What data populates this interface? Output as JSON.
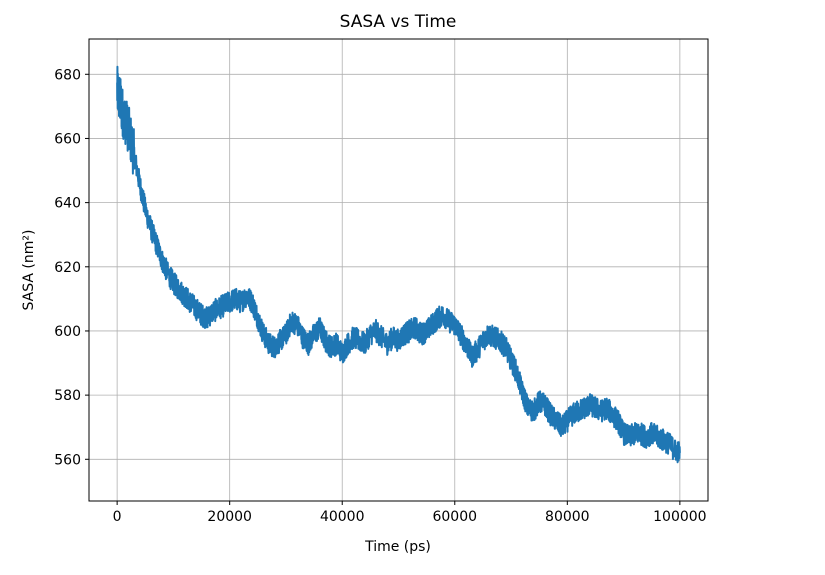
{
  "chart_data": {
    "type": "line",
    "title": "SASA vs Time",
    "xlabel": "Time (ps)",
    "ylabel": "SASA (nm²)",
    "xlim": [
      -5000,
      105000
    ],
    "ylim": [
      547,
      691
    ],
    "xticks": [
      0,
      20000,
      40000,
      60000,
      80000,
      100000
    ],
    "yticks": [
      560,
      580,
      600,
      620,
      640,
      660,
      680
    ],
    "grid": true,
    "series": [
      {
        "color": "#1f77b4",
        "noise": 3.5,
        "x": [
          0,
          500,
          1000,
          2000,
          3000,
          4000,
          5000,
          6000,
          7000,
          8000,
          9000,
          10000,
          11000,
          12000,
          13000,
          14000,
          15000,
          16000,
          17000,
          18000,
          19000,
          20000,
          21000,
          22000,
          23000,
          24000,
          25000,
          26000,
          27000,
          28000,
          29000,
          30000,
          31000,
          32000,
          33000,
          34000,
          35000,
          36000,
          37000,
          38000,
          39000,
          40000,
          41000,
          42000,
          43000,
          44000,
          45000,
          46000,
          47000,
          48000,
          49000,
          50000,
          51000,
          52000,
          53000,
          54000,
          55000,
          56000,
          57000,
          58000,
          59000,
          60000,
          61000,
          62000,
          63000,
          64000,
          65000,
          66000,
          67000,
          68000,
          69000,
          70000,
          71000,
          72000,
          73000,
          74000,
          75000,
          76000,
          77000,
          78000,
          79000,
          80000,
          81000,
          82000,
          83000,
          84000,
          85000,
          86000,
          87000,
          88000,
          89000,
          90000,
          91000,
          92000,
          93000,
          94000,
          95000,
          96000,
          97000,
          98000,
          99000,
          100000
        ],
        "y": [
          675,
          672,
          668,
          663,
          655,
          646,
          638,
          632,
          627,
          622,
          618,
          615,
          613,
          611,
          609,
          607,
          605,
          604,
          606,
          607,
          608,
          609,
          610,
          609,
          611,
          609,
          604,
          599,
          596,
          595,
          597,
          599,
          603,
          602,
          598,
          596,
          599,
          601,
          597,
          595,
          596,
          593,
          596,
          598,
          597,
          596,
          599,
          600,
          598,
          596,
          598,
          597,
          599,
          600,
          601,
          599,
          600,
          602,
          604,
          605,
          603,
          602,
          599,
          596,
          592,
          594,
          597,
          599,
          598,
          597,
          595,
          591,
          587,
          581,
          576,
          575,
          578,
          577,
          574,
          572,
          570,
          572,
          574,
          575,
          576,
          577,
          576,
          575,
          576,
          574,
          572,
          568,
          567,
          568,
          568,
          567,
          568,
          567,
          566,
          565,
          563,
          562
        ]
      }
    ]
  }
}
